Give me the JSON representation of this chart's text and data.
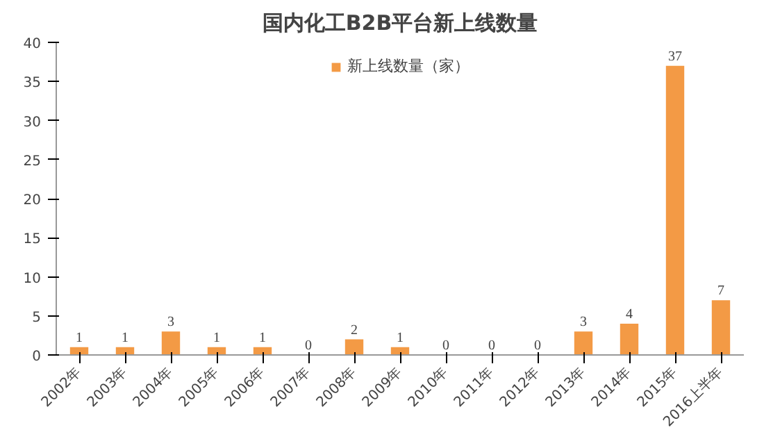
{
  "chart_data": {
    "type": "bar",
    "title": "国内化工B2B平台新上线数量",
    "categories": [
      "2002年",
      "2003年",
      "2004年",
      "2005年",
      "2006年",
      "2007年",
      "2008年",
      "2009年",
      "2010年",
      "2011年",
      "2012年",
      "2013年",
      "2014年",
      "2015年",
      "2016上半年"
    ],
    "series": [
      {
        "name": "新上线数量（家）",
        "color": "#f39a45",
        "values": [
          1,
          1,
          3,
          1,
          1,
          0,
          2,
          1,
          0,
          0,
          0,
          3,
          4,
          37,
          7
        ]
      }
    ],
    "ylim": [
      0,
      40
    ],
    "yticks": [
      0,
      5,
      10,
      15,
      20,
      25,
      30,
      35,
      40
    ],
    "grid": false,
    "legend": "top",
    "data_labels": true
  }
}
